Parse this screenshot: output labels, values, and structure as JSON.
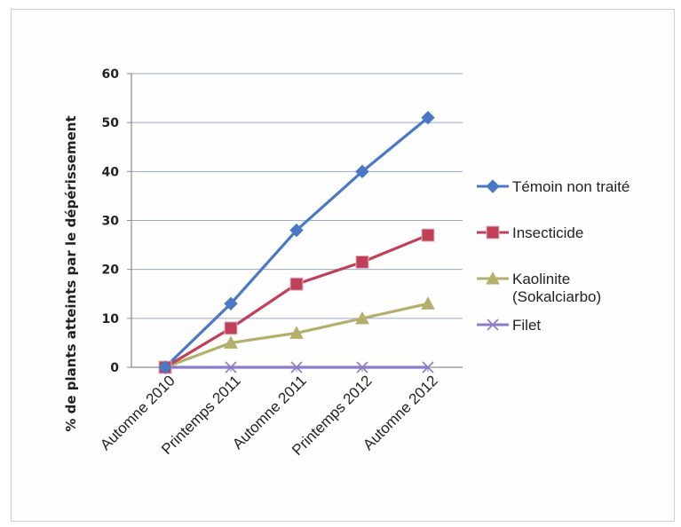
{
  "chart_data": {
    "type": "line",
    "title": "",
    "xlabel": "",
    "ylabel": "% de plants atteints par le dépérissement",
    "categories": [
      "Automne 2010",
      "Printemps 2011",
      "Automne 2011",
      "Printemps 2012",
      "Automne 2012"
    ],
    "ylim": [
      0,
      60
    ],
    "yticks": [
      0,
      10,
      20,
      30,
      40,
      50,
      60
    ],
    "grid": true,
    "legend_position": "right",
    "series": [
      {
        "name": "Témoin non traité",
        "values": [
          0,
          13,
          28,
          40,
          51
        ],
        "color": "#4a78c4",
        "marker": "diamond"
      },
      {
        "name": "Insecticide",
        "values": [
          0,
          8,
          17,
          21.5,
          27
        ],
        "color": "#c0405a",
        "marker": "square"
      },
      {
        "name": "Kaolinite (Sokalciarbo)",
        "legend_lines": [
          "Kaolinite",
          "(Sokalciarbo)"
        ],
        "values": [
          0,
          5,
          7,
          10,
          13
        ],
        "color": "#b4b06c",
        "marker": "triangle"
      },
      {
        "name": "Filet",
        "values": [
          0,
          0,
          0,
          0,
          0
        ],
        "color": "#8b7bc9",
        "marker": "x"
      }
    ]
  }
}
